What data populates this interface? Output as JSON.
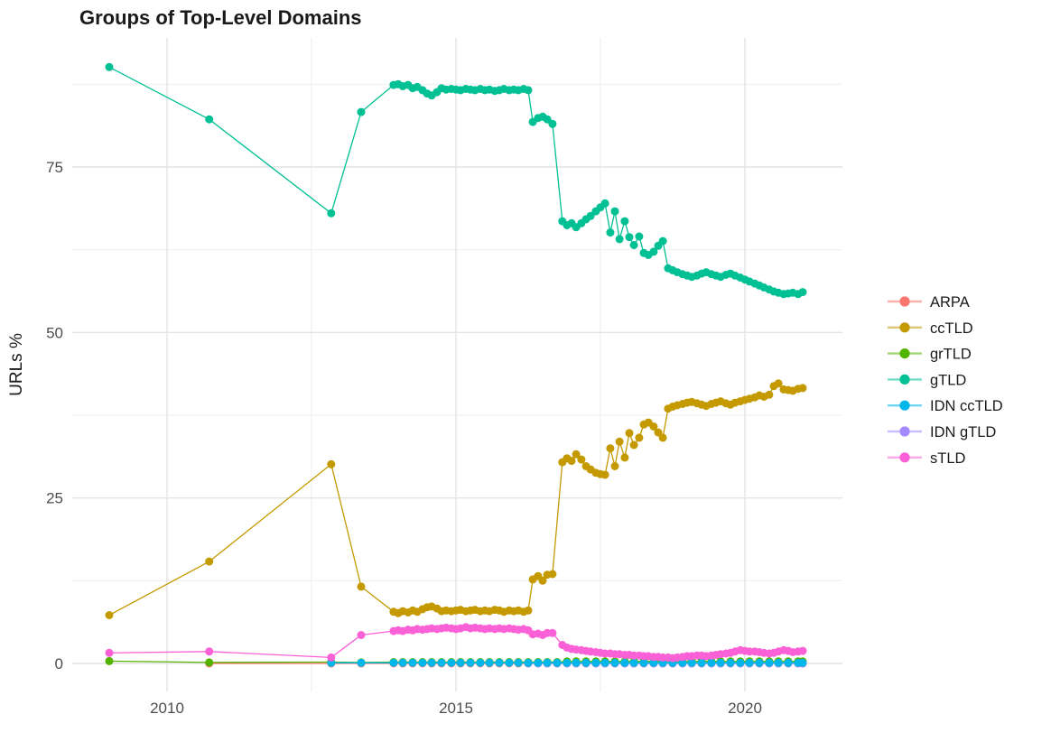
{
  "chart_data": {
    "type": "line",
    "title": "Groups of Top-Level Domains",
    "xlabel": "",
    "ylabel": "URLs %",
    "grid": true,
    "legend_position": "right",
    "x_ticks": [
      2010,
      2015,
      2020
    ],
    "x_minor_ticks": [
      2012.5,
      2017.5
    ],
    "y_ticks": [
      0,
      25,
      50,
      75
    ],
    "y_minor_ticks": [
      12.5,
      37.5,
      62.5,
      87.5
    ],
    "xlim": [
      2008.4,
      2021.7
    ],
    "ylim": [
      -4.5,
      94.5
    ],
    "x_main": [
      2009.0,
      2010.73,
      2012.84,
      2013.36,
      2013.92,
      2014.0,
      2014.08,
      2014.17,
      2014.25,
      2014.33,
      2014.42,
      2014.5,
      2014.58,
      2014.67,
      2014.75,
      2014.83,
      2014.92,
      2015.0,
      2015.08,
      2015.17,
      2015.25,
      2015.33,
      2015.42,
      2015.5,
      2015.58,
      2015.67,
      2015.75,
      2015.83,
      2015.92,
      2016.0,
      2016.08,
      2016.17,
      2016.25,
      2016.33,
      2016.42,
      2016.5,
      2016.58,
      2016.67,
      2016.84,
      2016.92,
      2017.0,
      2017.08,
      2017.17,
      2017.25,
      2017.33,
      2017.42,
      2017.5,
      2017.58,
      2017.67,
      2017.75,
      2017.83,
      2017.92,
      2018.0,
      2018.08,
      2018.17,
      2018.25,
      2018.33,
      2018.42,
      2018.5,
      2018.58,
      2018.67,
      2018.75,
      2018.83,
      2018.92,
      2019.0,
      2019.08,
      2019.17,
      2019.25,
      2019.33,
      2019.42,
      2019.5,
      2019.58,
      2019.67,
      2019.75,
      2019.83,
      2019.92,
      2020.0,
      2020.08,
      2020.17,
      2020.25,
      2020.33,
      2020.42,
      2020.5,
      2020.58,
      2020.67,
      2020.75,
      2020.83,
      2020.92,
      2021.0
    ],
    "x_sparse": [
      2013.92,
      2014.08,
      2014.25,
      2014.42,
      2014.58,
      2014.75,
      2014.92,
      2015.08,
      2015.25,
      2015.42,
      2015.58,
      2015.75,
      2015.92,
      2016.08,
      2016.25,
      2016.42,
      2016.58,
      2016.75,
      2016.92,
      2017.08,
      2017.25,
      2017.42,
      2017.58,
      2017.75,
      2017.92,
      2018.08,
      2018.25,
      2018.42,
      2018.58,
      2018.75,
      2018.92,
      2019.08,
      2019.25,
      2019.42,
      2019.58,
      2019.75,
      2019.92,
      2020.08,
      2020.25,
      2020.42,
      2020.58,
      2020.75,
      2020.92,
      2021.0
    ],
    "series": [
      {
        "name": "ARPA",
        "color": "#F8766D",
        "x_prefix": [
          2010.73,
          2012.84,
          2013.36
        ],
        "use_sparse_x": true,
        "y_const": 0.0
      },
      {
        "name": "IDN gTLD",
        "color": "#A58AFF",
        "x_prefix": [
          2016.25
        ],
        "use_sparse_x_from": 15,
        "y_const": 0.0
      },
      {
        "name": "ccTLD",
        "color": "#C49A00",
        "use_main_x": true,
        "y": [
          7.3,
          15.4,
          30.1,
          11.6,
          7.8,
          7.6,
          7.9,
          7.7,
          8.0,
          7.8,
          8.2,
          8.5,
          8.6,
          8.3,
          7.9,
          8.0,
          7.9,
          8.0,
          8.1,
          7.9,
          8.0,
          8.1,
          7.9,
          8.0,
          7.9,
          8.1,
          8.0,
          7.8,
          8.0,
          7.9,
          8.0,
          7.8,
          8.0,
          12.7,
          13.2,
          12.5,
          13.4,
          13.5,
          30.4,
          31.0,
          30.6,
          31.6,
          30.8,
          29.8,
          29.3,
          28.8,
          28.6,
          28.5,
          32.5,
          29.8,
          33.5,
          31.1,
          34.8,
          33.0,
          34.1,
          36.1,
          36.4,
          35.8,
          34.9,
          34.1,
          38.5,
          38.8,
          39.0,
          39.2,
          39.4,
          39.5,
          39.3,
          39.1,
          38.9,
          39.2,
          39.4,
          39.6,
          39.3,
          39.1,
          39.4,
          39.6,
          39.8,
          40.0,
          40.2,
          40.5,
          40.3,
          40.6,
          41.9,
          42.3,
          41.4,
          41.3,
          41.2,
          41.5,
          41.6
        ]
      },
      {
        "name": "grTLD",
        "color": "#53B400",
        "x_prefix": [
          2009.0,
          2010.73,
          2012.84,
          2013.36
        ],
        "use_sparse_x": true,
        "y_prefix": [
          0.35,
          0.15,
          0.2,
          0.15
        ],
        "y_fill": [
          0.2,
          0.2,
          0.2,
          0.2,
          0.2,
          0.2,
          0.2,
          0.2,
          0.2,
          0.2,
          0.2,
          0.2,
          0.2,
          0.2,
          0.2,
          0.2,
          0.2,
          0.2,
          0.3,
          0.3,
          0.3,
          0.3,
          0.3,
          0.3,
          0.3,
          0.3,
          0.3,
          0.3,
          0.3,
          0.3,
          0.3,
          0.3,
          0.3,
          0.3,
          0.3,
          0.3,
          0.3,
          0.3,
          0.3,
          0.3,
          0.3,
          0.3,
          0.3,
          0.3
        ]
      },
      {
        "name": "IDN ccTLD",
        "color": "#00B6EB",
        "x_prefix": [
          2012.84,
          2013.36
        ],
        "use_sparse_x": true,
        "y_const": 0.1
      },
      {
        "name": "gTLD",
        "color": "#00C094",
        "use_main_x": true,
        "y": [
          90.1,
          82.2,
          68.0,
          83.3,
          87.4,
          87.5,
          87.2,
          87.4,
          86.9,
          87.1,
          86.6,
          86.1,
          85.8,
          86.3,
          86.9,
          86.7,
          86.8,
          86.7,
          86.6,
          86.8,
          86.7,
          86.6,
          86.8,
          86.6,
          86.7,
          86.5,
          86.6,
          86.8,
          86.6,
          86.7,
          86.6,
          86.8,
          86.6,
          81.8,
          82.4,
          82.6,
          82.2,
          81.5,
          66.8,
          66.2,
          66.5,
          65.9,
          66.5,
          67.1,
          67.6,
          68.3,
          68.9,
          69.5,
          65.1,
          68.3,
          64.1,
          66.8,
          64.4,
          63.2,
          64.5,
          62.0,
          61.7,
          62.2,
          63.1,
          63.8,
          59.7,
          59.4,
          59.1,
          58.8,
          58.6,
          58.4,
          58.6,
          58.9,
          59.1,
          58.8,
          58.6,
          58.4,
          58.7,
          58.9,
          58.6,
          58.3,
          58.0,
          57.7,
          57.4,
          57.1,
          56.8,
          56.5,
          56.2,
          56.0,
          55.8,
          55.9,
          56.0,
          55.8,
          56.1
        ]
      },
      {
        "name": "sTLD",
        "color": "#FB61D7",
        "use_main_x": true,
        "y": [
          1.6,
          1.8,
          0.9,
          4.3,
          4.9,
          5.0,
          4.9,
          5.1,
          5.0,
          5.2,
          5.1,
          5.2,
          5.3,
          5.2,
          5.3,
          5.4,
          5.3,
          5.2,
          5.3,
          5.5,
          5.3,
          5.4,
          5.3,
          5.2,
          5.3,
          5.2,
          5.3,
          5.2,
          5.3,
          5.2,
          5.1,
          5.2,
          5.0,
          4.4,
          4.5,
          4.3,
          4.6,
          4.6,
          2.8,
          2.4,
          2.2,
          2.1,
          2.0,
          1.9,
          1.8,
          1.7,
          1.6,
          1.5,
          1.5,
          1.4,
          1.4,
          1.3,
          1.3,
          1.2,
          1.2,
          1.1,
          1.1,
          1.0,
          1.0,
          0.9,
          0.9,
          0.8,
          0.9,
          1.0,
          1.1,
          1.1,
          1.2,
          1.2,
          1.1,
          1.2,
          1.3,
          1.4,
          1.5,
          1.6,
          1.8,
          2.0,
          1.9,
          1.8,
          1.8,
          1.7,
          1.6,
          1.5,
          1.6,
          1.8,
          2.0,
          1.9,
          1.7,
          1.8,
          1.9
        ]
      }
    ],
    "legend": {
      "items": [
        {
          "label": "ARPA",
          "color": "#F8766D"
        },
        {
          "label": "ccTLD",
          "color": "#C49A00"
        },
        {
          "label": "grTLD",
          "color": "#53B400"
        },
        {
          "label": "gTLD",
          "color": "#00C094"
        },
        {
          "label": "IDN ccTLD",
          "color": "#00B6EB"
        },
        {
          "label": "IDN gTLD",
          "color": "#A58AFF"
        },
        {
          "label": "sTLD",
          "color": "#FB61D7"
        }
      ]
    },
    "colors": {
      "grid_major": "#E4E4E4",
      "grid_minor": "#F0F0F0",
      "tick_label": "#4d4d4d",
      "title": "#1a1a1a"
    }
  }
}
